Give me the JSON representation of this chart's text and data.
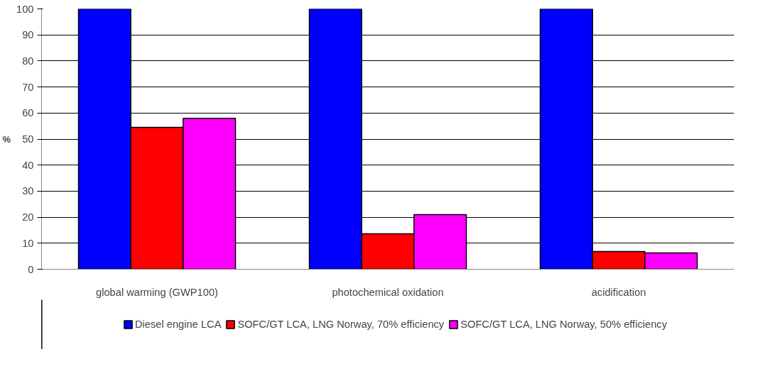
{
  "chart_data": {
    "type": "bar",
    "ylabel": "%",
    "categories": [
      "global warming (GWP100)",
      "photochemical oxidation",
      "acidification"
    ],
    "series": [
      {
        "name": "Diesel engine LCA",
        "color": "#0000ff",
        "values": [
          100,
          100,
          100
        ]
      },
      {
        "name": "SOFC/GT LCA, LNG Norway, 70% efficiency",
        "color": "#ff0000",
        "values": [
          54.5,
          13.6,
          6.8
        ]
      },
      {
        "name": "SOFC/GT LCA, LNG Norway, 50% efficiency",
        "color": "#ff00ff",
        "values": [
          58,
          21,
          6.3
        ]
      }
    ],
    "ylim": [
      0,
      100
    ],
    "yticks": [
      0,
      10,
      20,
      30,
      40,
      50,
      60,
      70,
      80,
      90,
      100
    ],
    "grid": "y",
    "legend": "bottom"
  }
}
